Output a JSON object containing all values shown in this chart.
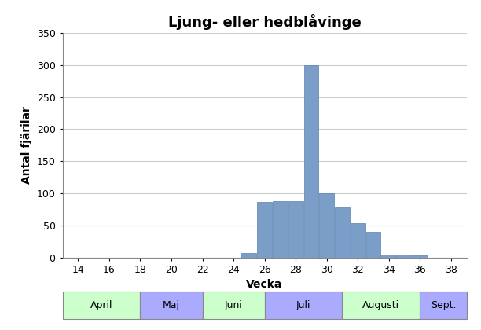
{
  "title": "Ljung- eller hedblåvinge",
  "xlabel": "Vecka",
  "ylabel": "Antal fjärilar",
  "bar_color": "#7b9ec9",
  "bar_edgecolor": "#5a7fab",
  "background_color": "#ffffff",
  "plot_bg_color": "#ffffff",
  "xlim": [
    13,
    39
  ],
  "ylim": [
    0,
    350
  ],
  "xticks": [
    14,
    16,
    18,
    20,
    22,
    24,
    26,
    28,
    30,
    32,
    34,
    36,
    38
  ],
  "yticks": [
    0,
    50,
    100,
    150,
    200,
    250,
    300,
    350
  ],
  "weeks": [
    25,
    26,
    27,
    28,
    29,
    30,
    31,
    32,
    33,
    34,
    35,
    36
  ],
  "values": [
    7,
    87,
    88,
    88,
    300,
    100,
    78,
    53,
    40,
    5,
    5,
    3
  ],
  "month_labels": [
    {
      "label": "April",
      "x_start": 13,
      "x_end": 18,
      "color": "#ccffcc"
    },
    {
      "label": "Maj",
      "x_start": 18,
      "x_end": 22,
      "color": "#aaaaff"
    },
    {
      "label": "Juni",
      "x_start": 22,
      "x_end": 26,
      "color": "#ccffcc"
    },
    {
      "label": "Juli",
      "x_start": 26,
      "x_end": 31,
      "color": "#aaaaff"
    },
    {
      "label": "Augusti",
      "x_start": 31,
      "x_end": 36,
      "color": "#ccffcc"
    },
    {
      "label": "Sept.",
      "x_start": 36,
      "x_end": 39,
      "color": "#aaaaff"
    }
  ],
  "grid_color": "#cccccc",
  "title_fontsize": 13,
  "axis_fontsize": 10,
  "tick_fontsize": 9,
  "month_fontsize": 9
}
